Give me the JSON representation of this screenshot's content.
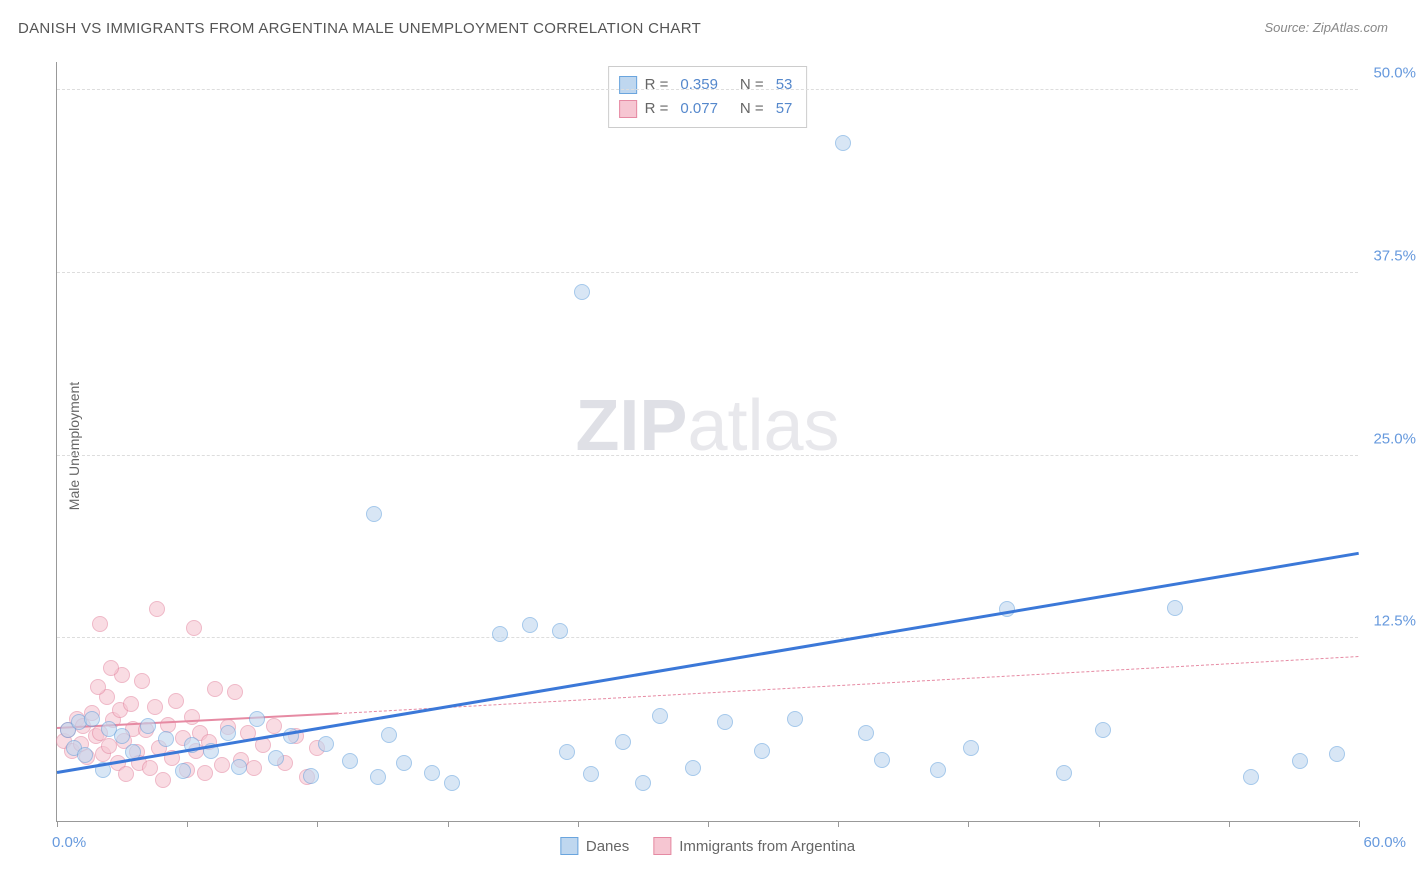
{
  "title": "DANISH VS IMMIGRANTS FROM ARGENTINA MALE UNEMPLOYMENT CORRELATION CHART",
  "source": "Source: ZipAtlas.com",
  "ylabel": "Male Unemployment",
  "watermark_bold": "ZIP",
  "watermark_light": "atlas",
  "chart": {
    "type": "scatter",
    "xlim": [
      0,
      60
    ],
    "ylim": [
      0,
      52
    ],
    "x_origin_label": "0.0%",
    "x_max_label": "60.0%",
    "xtick_positions": [
      0,
      6,
      12,
      18,
      24,
      30,
      36,
      42,
      48,
      54,
      60
    ],
    "yticks": [
      {
        "value": 12.5,
        "label": "12.5%"
      },
      {
        "value": 25.0,
        "label": "25.0%"
      },
      {
        "value": 37.5,
        "label": "37.5%"
      },
      {
        "value": 50.0,
        "label": "50.0%"
      }
    ],
    "grid_color": "#dddddd",
    "axis_color": "#999999",
    "background_color": "#ffffff",
    "marker_radius": 8,
    "series": [
      {
        "id": "danes",
        "label": "Danes",
        "fill_color": "#bfd7ef",
        "stroke_color": "#6aa5de",
        "fill_opacity": 0.6,
        "R": "0.359",
        "N": "53",
        "trend": {
          "x1": 0,
          "y1": 3.2,
          "x2": 60,
          "y2": 18.2,
          "width": 3,
          "color": "#3b78d8",
          "dash": "solid"
        },
        "points": [
          [
            0.5,
            6.2
          ],
          [
            0.8,
            5.0
          ],
          [
            1.0,
            6.8
          ],
          [
            1.3,
            4.5
          ],
          [
            1.6,
            7.0
          ],
          [
            2.1,
            3.5
          ],
          [
            2.4,
            6.3
          ],
          [
            3.0,
            5.8
          ],
          [
            3.5,
            4.7
          ],
          [
            4.2,
            6.5
          ],
          [
            5.0,
            5.6
          ],
          [
            5.8,
            3.4
          ],
          [
            6.2,
            5.2
          ],
          [
            7.1,
            4.8
          ],
          [
            7.9,
            6.0
          ],
          [
            8.4,
            3.7
          ],
          [
            9.2,
            7.0
          ],
          [
            10.1,
            4.3
          ],
          [
            10.8,
            5.8
          ],
          [
            11.7,
            3.1
          ],
          [
            12.4,
            5.3
          ],
          [
            13.5,
            4.1
          ],
          [
            14.8,
            3.0
          ],
          [
            15.3,
            5.9
          ],
          [
            14.6,
            21.0
          ],
          [
            16.0,
            4.0
          ],
          [
            17.3,
            3.3
          ],
          [
            18.2,
            2.6
          ],
          [
            20.4,
            12.8
          ],
          [
            21.8,
            13.4
          ],
          [
            23.2,
            13.0
          ],
          [
            23.5,
            4.7
          ],
          [
            24.6,
            3.2
          ],
          [
            24.2,
            36.2
          ],
          [
            26.1,
            5.4
          ],
          [
            27.8,
            7.2
          ],
          [
            29.3,
            3.6
          ],
          [
            30.8,
            6.8
          ],
          [
            27.0,
            2.6
          ],
          [
            32.5,
            4.8
          ],
          [
            34.0,
            7.0
          ],
          [
            36.2,
            46.4
          ],
          [
            37.3,
            6.0
          ],
          [
            38.0,
            4.2
          ],
          [
            40.6,
            3.5
          ],
          [
            42.1,
            5.0
          ],
          [
            43.8,
            14.5
          ],
          [
            46.4,
            3.3
          ],
          [
            48.2,
            6.2
          ],
          [
            51.5,
            14.6
          ],
          [
            55.0,
            3.0
          ],
          [
            57.3,
            4.1
          ],
          [
            59.0,
            4.6
          ]
        ]
      },
      {
        "id": "argentina",
        "label": "Immigrants from Argentina",
        "fill_color": "#f6c6d2",
        "stroke_color": "#e58aa3",
        "fill_opacity": 0.6,
        "R": "0.077",
        "N": "57",
        "trend_solid": {
          "x1": 0,
          "y1": 6.3,
          "x2": 13,
          "y2": 7.3,
          "width": 2,
          "color": "#e68aa3",
          "dash": "solid"
        },
        "trend_dashed": {
          "x1": 13,
          "y1": 7.3,
          "x2": 60,
          "y2": 11.2,
          "width": 1,
          "color": "#e68aa3",
          "dash": "dashed"
        },
        "points": [
          [
            0.3,
            5.5
          ],
          [
            0.5,
            6.2
          ],
          [
            0.7,
            4.8
          ],
          [
            0.9,
            7.0
          ],
          [
            1.1,
            5.3
          ],
          [
            1.2,
            6.5
          ],
          [
            1.4,
            4.4
          ],
          [
            1.6,
            7.4
          ],
          [
            1.8,
            5.8
          ],
          [
            2.0,
            6.0
          ],
          [
            2.1,
            4.6
          ],
          [
            2.3,
            8.5
          ],
          [
            2.4,
            5.1
          ],
          [
            2.6,
            6.9
          ],
          [
            2.8,
            4.0
          ],
          [
            2.9,
            7.6
          ],
          [
            3.1,
            5.5
          ],
          [
            3.2,
            3.2
          ],
          [
            3.4,
            8.0
          ],
          [
            3.5,
            6.3
          ],
          [
            3.7,
            4.7
          ],
          [
            3.9,
            9.6
          ],
          [
            3.0,
            10.0
          ],
          [
            1.9,
            9.2
          ],
          [
            2.5,
            10.5
          ],
          [
            2.0,
            13.5
          ],
          [
            3.8,
            4.0
          ],
          [
            4.1,
            6.2
          ],
          [
            4.3,
            3.6
          ],
          [
            4.5,
            7.8
          ],
          [
            4.7,
            5.0
          ],
          [
            4.9,
            2.8
          ],
          [
            5.1,
            6.6
          ],
          [
            5.3,
            4.3
          ],
          [
            5.5,
            8.2
          ],
          [
            4.6,
            14.5
          ],
          [
            5.8,
            5.7
          ],
          [
            6.0,
            3.5
          ],
          [
            6.2,
            7.1
          ],
          [
            6.4,
            4.8
          ],
          [
            6.6,
            6.0
          ],
          [
            6.8,
            3.3
          ],
          [
            6.3,
            13.2
          ],
          [
            7.0,
            5.4
          ],
          [
            7.3,
            9.0
          ],
          [
            7.6,
            3.8
          ],
          [
            7.9,
            6.4
          ],
          [
            8.2,
            8.8
          ],
          [
            8.5,
            4.2
          ],
          [
            8.8,
            6.0
          ],
          [
            9.1,
            3.6
          ],
          [
            9.5,
            5.2
          ],
          [
            10.0,
            6.5
          ],
          [
            10.5,
            4.0
          ],
          [
            11.0,
            5.8
          ],
          [
            11.5,
            3.0
          ],
          [
            12.0,
            5.0
          ]
        ]
      }
    ]
  },
  "legend_top": {
    "r_label": "R =",
    "n_label": "N ="
  }
}
